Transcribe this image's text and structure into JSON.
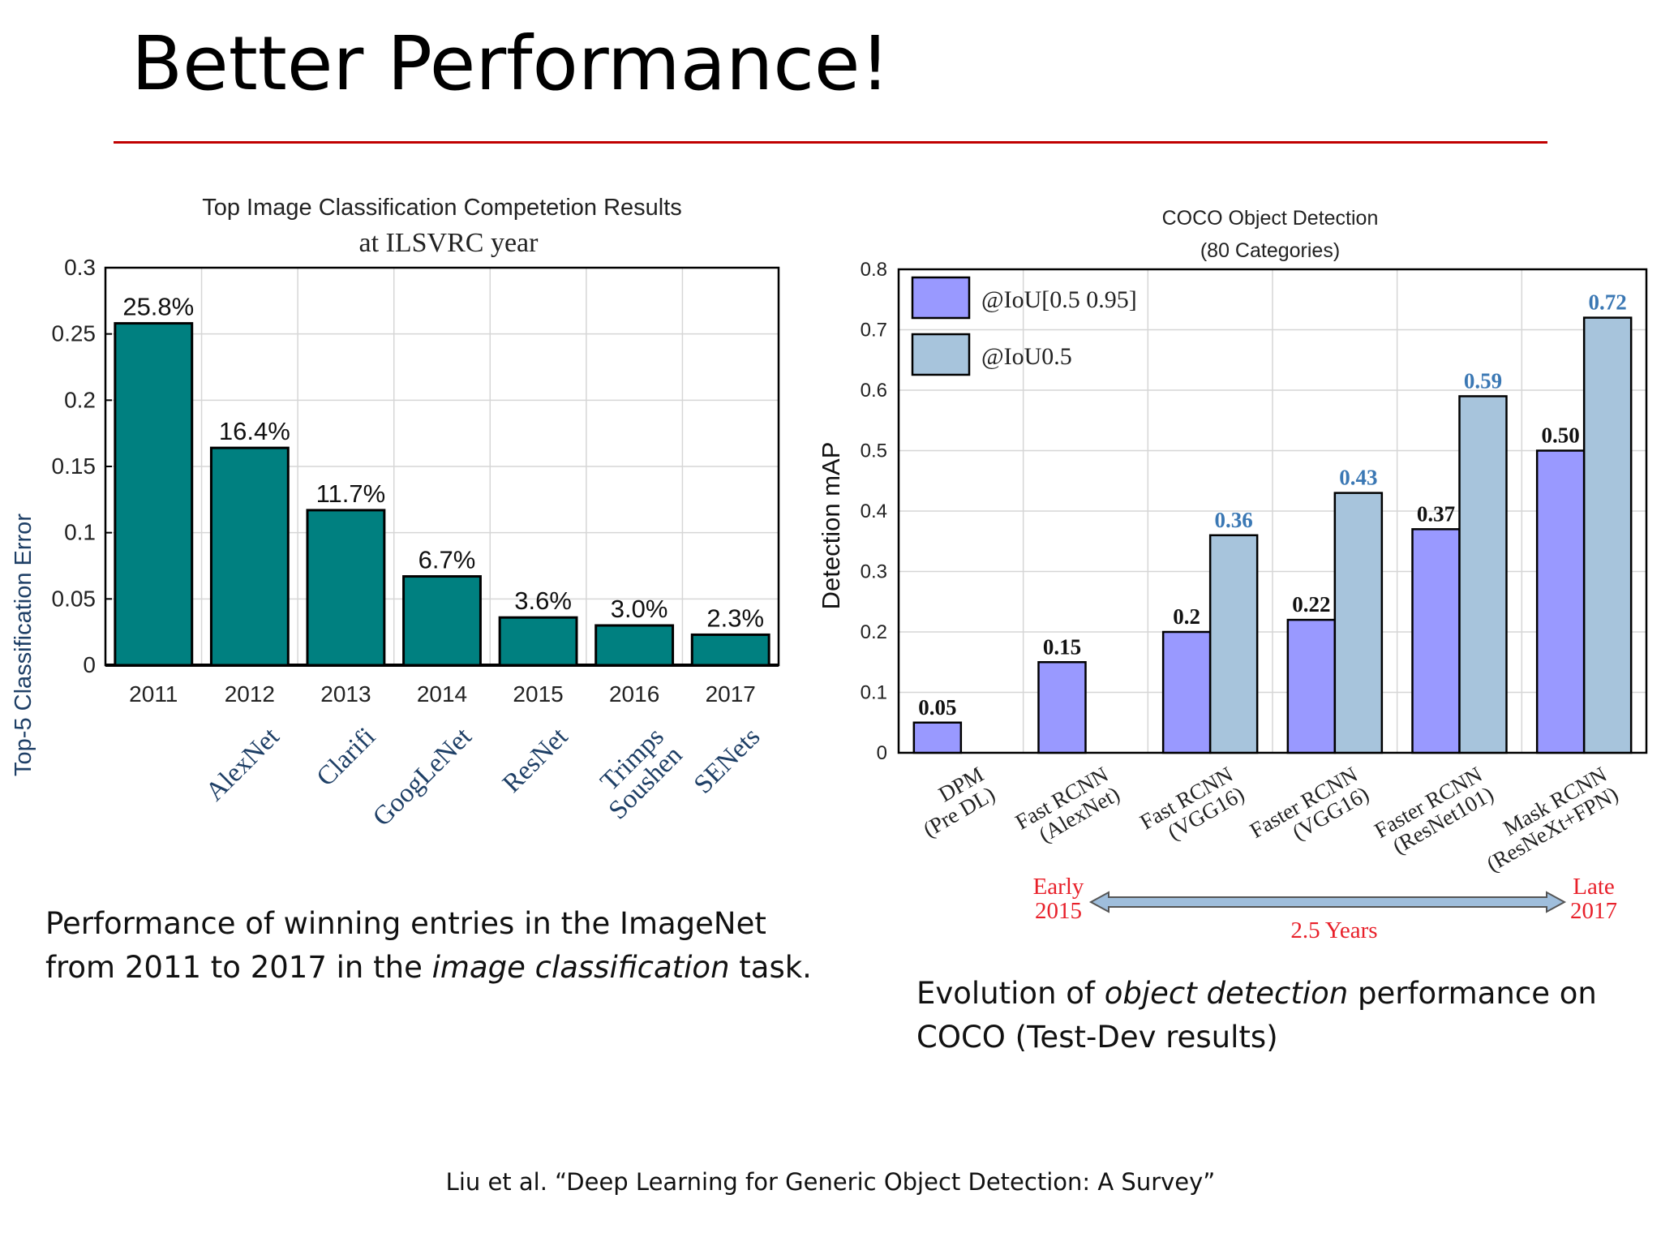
{
  "slide": {
    "title": "Better Performance!",
    "caption_left": {
      "before": "Performance of winning entries in the ImageNet from 2011 to 2017 in the ",
      "emphasis": "image classification",
      "after": " task."
    },
    "caption_right": {
      "before": "Evolution of ",
      "emphasis": "object detection",
      "after": " performance on COCO (Test-Dev results)"
    },
    "citation": "Liu et al. “Deep Learning for Generic Object Detection: A Survey”"
  },
  "colors": {
    "title_rule": "#c00000",
    "teal_bar": "#008080",
    "purple_bar": "#9999ff",
    "blue_bar": "#a7c4dc",
    "blue_label": "#3b78b4",
    "red_text": "#e8202a"
  },
  "chart_data": [
    {
      "type": "bar",
      "title": "Top Image Classification Competetion Results",
      "subtitle": "at ILSVRC year",
      "xlabel": "",
      "ylabel": "Top-5 Classification Error",
      "categories": [
        "2011",
        "2012",
        "2013",
        "2014",
        "2015",
        "2016",
        "2017"
      ],
      "sublabels": [
        "",
        "AlexNet",
        "Clarifi",
        "GoogLeNet",
        "ResNet",
        "Trimps Soushen",
        "SENets"
      ],
      "values": [
        0.258,
        0.164,
        0.117,
        0.067,
        0.036,
        0.03,
        0.023
      ],
      "data_labels": [
        "25.8%",
        "16.4%",
        "11.7%",
        "6.7%",
        "3.6%",
        "3.0%",
        "2.3%"
      ],
      "yticks": [
        "0",
        "0.05",
        "0.1",
        "0.15",
        "0.2",
        "0.25",
        "0.3"
      ],
      "ylim": [
        0,
        0.3
      ],
      "grid": true
    },
    {
      "type": "bar",
      "title": "COCO Object Detection",
      "subtitle": "(80 Categories)",
      "xlabel": "",
      "ylabel": "Detection mAP",
      "categories": [
        "DPM\n(Pre DL)",
        "Fast RCNN\n(AlexNet)",
        "Fast RCNN\n(VGG16)",
        "Faster RCNN\n(VGG16)",
        "Faster RCNN\n(ResNet101)",
        "Mask RCNN\n(ResNeXt+FPN)"
      ],
      "series": [
        {
          "name": "@IoU[0.5 0.95]",
          "values": [
            0.05,
            0.15,
            0.2,
            0.22,
            0.37,
            0.5
          ],
          "labels": [
            "0.05",
            "0.15",
            "0.2",
            "0.22",
            "0.37",
            "0.50"
          ]
        },
        {
          "name": "@IoU0.5",
          "values": [
            null,
            null,
            0.36,
            0.43,
            0.59,
            0.72
          ],
          "labels": [
            "",
            "",
            "0.36",
            "0.43",
            "0.59",
            "0.72"
          ]
        }
      ],
      "yticks": [
        "0",
        "0.1",
        "0.2",
        "0.3",
        "0.4",
        "0.5",
        "0.6",
        "0.7",
        "0.8"
      ],
      "ylim": [
        0,
        0.8
      ],
      "grid": true,
      "legend": "top-left",
      "timeline": {
        "start": "Early\n2015",
        "end": "Late\n2017",
        "span": "2.5 Years"
      }
    }
  ]
}
